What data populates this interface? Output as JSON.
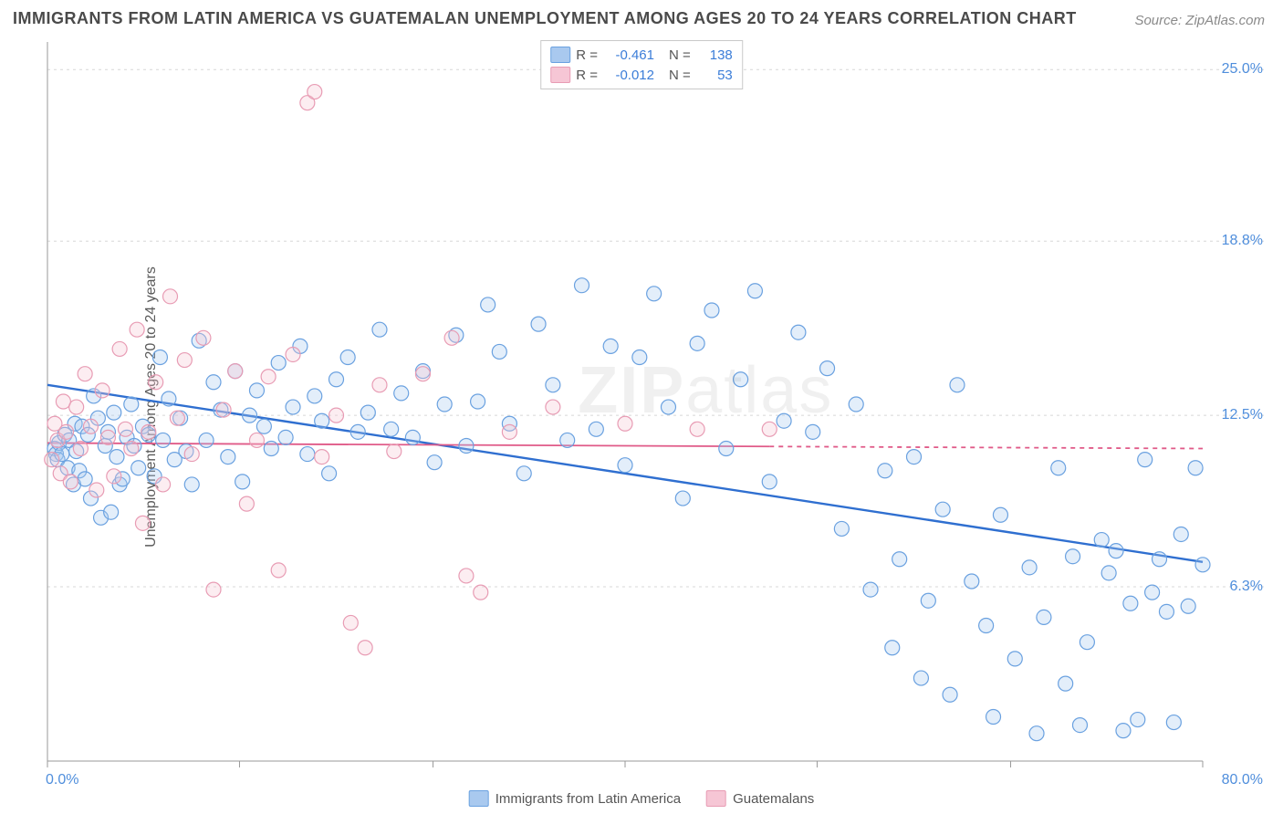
{
  "title": "IMMIGRANTS FROM LATIN AMERICA VS GUATEMALAN UNEMPLOYMENT AMONG AGES 20 TO 24 YEARS CORRELATION CHART",
  "source": "Source: ZipAtlas.com",
  "ylabel": "Unemployment Among Ages 20 to 24 years",
  "watermark": "ZIPatlas",
  "chart": {
    "type": "scatter",
    "background_color": "#ffffff",
    "grid_color": "#d7d7d7",
    "axis_color": "#9a9a9a",
    "axis_label_color": "#4f8edc",
    "xlim": [
      0,
      80
    ],
    "ylim": [
      0,
      26
    ],
    "yticks": [
      6.3,
      12.5,
      18.8,
      25.0
    ],
    "ytick_labels": [
      "6.3%",
      "12.5%",
      "18.8%",
      "25.0%"
    ],
    "xaxis_min_label": "0.0%",
    "xaxis_max_label": "80.0%",
    "xtick_positions": [
      0,
      13.3,
      26.7,
      40,
      53.3,
      66.7,
      80
    ],
    "marker_radius": 8,
    "marker_stroke_width": 1.2,
    "marker_fill_opacity": 0.32,
    "series": [
      {
        "name": "Immigrants from Latin America",
        "color_stroke": "#6aa1e0",
        "color_fill": "#a9c9ef",
        "trend": {
          "x1": 0,
          "y1": 13.6,
          "x2": 80,
          "y2": 7.2,
          "stroke": "#2f6fd0",
          "width": 2.4,
          "dash_after_x": null
        },
        "r_value": "-0.461",
        "n_value": "138",
        "points": [
          [
            0.5,
            11.3
          ],
          [
            0.6,
            11.1
          ],
          [
            0.7,
            10.9
          ],
          [
            0.8,
            11.5
          ],
          [
            1.0,
            11.1
          ],
          [
            1.2,
            11.8
          ],
          [
            1.4,
            10.6
          ],
          [
            1.5,
            11.6
          ],
          [
            1.8,
            10.0
          ],
          [
            1.9,
            12.2
          ],
          [
            2.0,
            11.2
          ],
          [
            2.2,
            10.5
          ],
          [
            2.4,
            12.1
          ],
          [
            2.6,
            10.2
          ],
          [
            2.8,
            11.8
          ],
          [
            3.0,
            9.5
          ],
          [
            3.2,
            13.2
          ],
          [
            3.5,
            12.4
          ],
          [
            3.7,
            8.8
          ],
          [
            4.0,
            11.4
          ],
          [
            4.2,
            11.9
          ],
          [
            4.4,
            9.0
          ],
          [
            4.6,
            12.6
          ],
          [
            4.8,
            11.0
          ],
          [
            5.0,
            10.0
          ],
          [
            5.2,
            10.2
          ],
          [
            5.5,
            11.7
          ],
          [
            5.8,
            12.9
          ],
          [
            6.0,
            11.4
          ],
          [
            6.3,
            10.6
          ],
          [
            6.6,
            12.1
          ],
          [
            7.0,
            11.8
          ],
          [
            7.4,
            10.3
          ],
          [
            7.8,
            14.6
          ],
          [
            8.0,
            11.6
          ],
          [
            8.4,
            13.1
          ],
          [
            8.8,
            10.9
          ],
          [
            9.2,
            12.4
          ],
          [
            9.6,
            11.2
          ],
          [
            10.0,
            10.0
          ],
          [
            10.5,
            15.2
          ],
          [
            11.0,
            11.6
          ],
          [
            11.5,
            13.7
          ],
          [
            12.0,
            12.7
          ],
          [
            12.5,
            11.0
          ],
          [
            13.0,
            14.1
          ],
          [
            13.5,
            10.1
          ],
          [
            14.0,
            12.5
          ],
          [
            14.5,
            13.4
          ],
          [
            15.0,
            12.1
          ],
          [
            15.5,
            11.3
          ],
          [
            16.0,
            14.4
          ],
          [
            16.5,
            11.7
          ],
          [
            17.0,
            12.8
          ],
          [
            17.5,
            15.0
          ],
          [
            18.0,
            11.1
          ],
          [
            18.5,
            13.2
          ],
          [
            19.0,
            12.3
          ],
          [
            19.5,
            10.4
          ],
          [
            20.0,
            13.8
          ],
          [
            20.8,
            14.6
          ],
          [
            21.5,
            11.9
          ],
          [
            22.2,
            12.6
          ],
          [
            23.0,
            15.6
          ],
          [
            23.8,
            12.0
          ],
          [
            24.5,
            13.3
          ],
          [
            25.3,
            11.7
          ],
          [
            26.0,
            14.1
          ],
          [
            26.8,
            10.8
          ],
          [
            27.5,
            12.9
          ],
          [
            28.3,
            15.4
          ],
          [
            29.0,
            11.4
          ],
          [
            29.8,
            13.0
          ],
          [
            30.5,
            16.5
          ],
          [
            31.3,
            14.8
          ],
          [
            32.0,
            12.2
          ],
          [
            33.0,
            10.4
          ],
          [
            34.0,
            15.8
          ],
          [
            35.0,
            13.6
          ],
          [
            36.0,
            11.6
          ],
          [
            37.0,
            17.2
          ],
          [
            38.0,
            12.0
          ],
          [
            39.0,
            15.0
          ],
          [
            40.0,
            10.7
          ],
          [
            41.0,
            14.6
          ],
          [
            42.0,
            16.9
          ],
          [
            43.0,
            12.8
          ],
          [
            44.0,
            9.5
          ],
          [
            45.0,
            15.1
          ],
          [
            46.0,
            16.3
          ],
          [
            47.0,
            11.3
          ],
          [
            48.0,
            13.8
          ],
          [
            49.0,
            17.0
          ],
          [
            50.0,
            10.1
          ],
          [
            51.0,
            12.3
          ],
          [
            52.0,
            15.5
          ],
          [
            53.0,
            11.9
          ],
          [
            54.0,
            14.2
          ],
          [
            55.0,
            8.4
          ],
          [
            56.0,
            12.9
          ],
          [
            57.0,
            6.2
          ],
          [
            58.0,
            10.5
          ],
          [
            58.5,
            4.1
          ],
          [
            59.0,
            7.3
          ],
          [
            60.0,
            11.0
          ],
          [
            60.5,
            3.0
          ],
          [
            61.0,
            5.8
          ],
          [
            62.0,
            9.1
          ],
          [
            62.5,
            2.4
          ],
          [
            63.0,
            13.6
          ],
          [
            64.0,
            6.5
          ],
          [
            65.0,
            4.9
          ],
          [
            65.5,
            1.6
          ],
          [
            66.0,
            8.9
          ],
          [
            67.0,
            3.7
          ],
          [
            68.0,
            7.0
          ],
          [
            68.5,
            1.0
          ],
          [
            69.0,
            5.2
          ],
          [
            70.0,
            10.6
          ],
          [
            70.5,
            2.8
          ],
          [
            71.0,
            7.4
          ],
          [
            71.5,
            1.3
          ],
          [
            72.0,
            4.3
          ],
          [
            73.0,
            8.0
          ],
          [
            73.5,
            6.8
          ],
          [
            74.0,
            7.6
          ],
          [
            74.5,
            1.1
          ],
          [
            75.0,
            5.7
          ],
          [
            75.5,
            1.5
          ],
          [
            76.0,
            10.9
          ],
          [
            76.5,
            6.1
          ],
          [
            77.0,
            7.3
          ],
          [
            77.5,
            5.4
          ],
          [
            78.0,
            1.4
          ],
          [
            78.5,
            8.2
          ],
          [
            79.0,
            5.6
          ],
          [
            79.5,
            10.6
          ],
          [
            80.0,
            7.1
          ]
        ]
      },
      {
        "name": "Guatemalans",
        "color_stroke": "#e89cb4",
        "color_fill": "#f6c6d5",
        "trend": {
          "x1": 0,
          "y1": 11.5,
          "x2": 80,
          "y2": 11.3,
          "stroke": "#e05a88",
          "width": 1.8,
          "dash_after_x": 50
        },
        "r_value": "-0.012",
        "n_value": "53",
        "points": [
          [
            0.3,
            10.9
          ],
          [
            0.5,
            12.2
          ],
          [
            0.7,
            11.6
          ],
          [
            0.9,
            10.4
          ],
          [
            1.1,
            13.0
          ],
          [
            1.3,
            11.9
          ],
          [
            1.6,
            10.1
          ],
          [
            2.0,
            12.8
          ],
          [
            2.3,
            11.3
          ],
          [
            2.6,
            14.0
          ],
          [
            3.0,
            12.1
          ],
          [
            3.4,
            9.8
          ],
          [
            3.8,
            13.4
          ],
          [
            4.2,
            11.7
          ],
          [
            4.6,
            10.3
          ],
          [
            5.0,
            14.9
          ],
          [
            5.4,
            12.0
          ],
          [
            5.8,
            11.3
          ],
          [
            6.2,
            15.6
          ],
          [
            6.6,
            8.6
          ],
          [
            7.0,
            11.9
          ],
          [
            7.5,
            13.7
          ],
          [
            8.0,
            10.0
          ],
          [
            8.5,
            16.8
          ],
          [
            9.0,
            12.4
          ],
          [
            9.5,
            14.5
          ],
          [
            10.0,
            11.1
          ],
          [
            10.8,
            15.3
          ],
          [
            11.5,
            6.2
          ],
          [
            12.2,
            12.7
          ],
          [
            13.0,
            14.1
          ],
          [
            13.8,
            9.3
          ],
          [
            14.5,
            11.6
          ],
          [
            15.3,
            13.9
          ],
          [
            16.0,
            6.9
          ],
          [
            17.0,
            14.7
          ],
          [
            18.0,
            23.8
          ],
          [
            18.5,
            24.2
          ],
          [
            19.0,
            11.0
          ],
          [
            20.0,
            12.5
          ],
          [
            21.0,
            5.0
          ],
          [
            22.0,
            4.1
          ],
          [
            23.0,
            13.6
          ],
          [
            24.0,
            11.2
          ],
          [
            26.0,
            14.0
          ],
          [
            28.0,
            15.3
          ],
          [
            29.0,
            6.7
          ],
          [
            30.0,
            6.1
          ],
          [
            32.0,
            11.9
          ],
          [
            35.0,
            12.8
          ],
          [
            40.0,
            12.2
          ],
          [
            45.0,
            12.0
          ],
          [
            50.0,
            12.0
          ]
        ]
      }
    ]
  },
  "bottom_legend": [
    {
      "label": "Immigrants from Latin America",
      "fill": "#a9c9ef",
      "stroke": "#6aa1e0"
    },
    {
      "label": "Guatemalans",
      "fill": "#f6c6d5",
      "stroke": "#e89cb4"
    }
  ]
}
